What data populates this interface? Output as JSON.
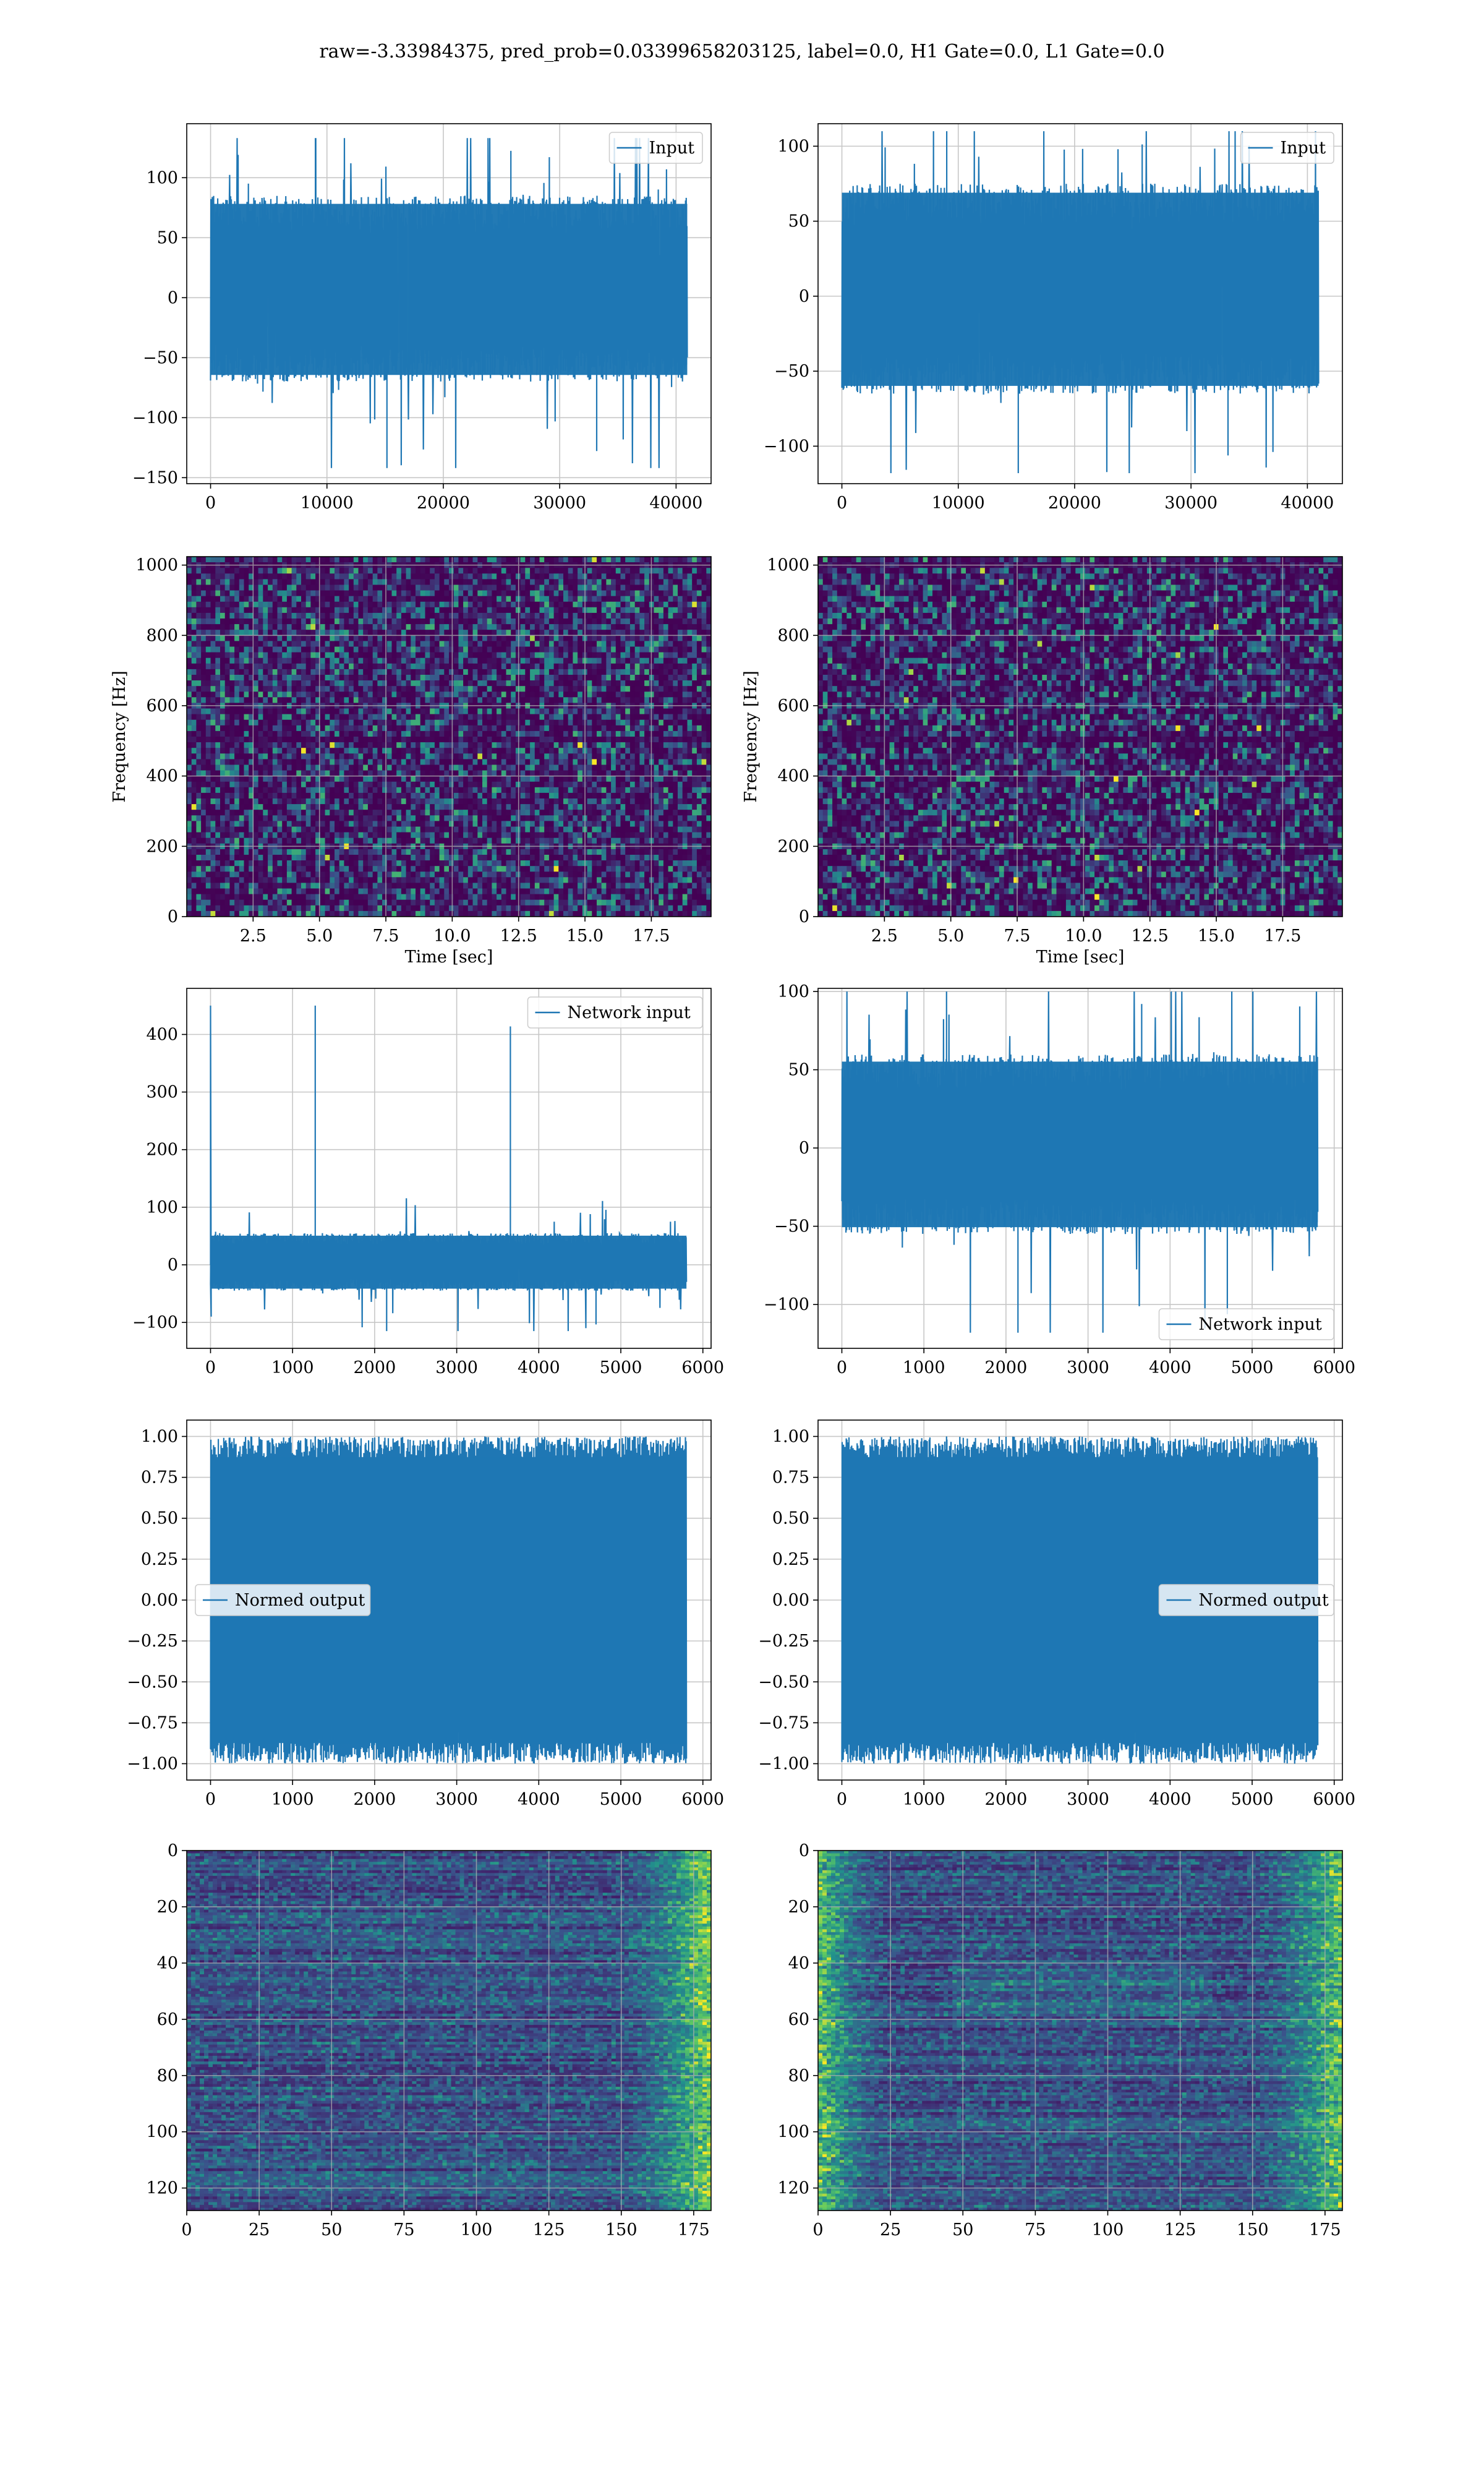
{
  "title": "raw=-3.33984375, pred_prob=0.03399658203125, label=0.0, H1 Gate=0.0, L1 Gate=0.0",
  "colors": {
    "line": "#1f77b4",
    "grid": "#b0b0b0",
    "viridis_low": "#440154",
    "viridis_mid": "#21918c",
    "viridis_high": "#fde725"
  },
  "chart_data": [
    {
      "id": "h1-input",
      "type": "line",
      "signal": "noise",
      "legend": {
        "label": "Input",
        "loc": "upper-right"
      },
      "xlim": [
        -2048,
        43008
      ],
      "ylim": [
        -155,
        145
      ],
      "xticks": [
        0,
        10000,
        20000,
        30000,
        40000
      ],
      "yticks": [
        -150,
        -100,
        -50,
        0,
        50,
        100
      ],
      "series": [
        {
          "name": "Input",
          "x_range": [
            0,
            40960
          ],
          "core_amplitude": [
            -70,
            85
          ],
          "peak_max": 133,
          "peak_min": -142
        }
      ]
    },
    {
      "id": "l1-input",
      "type": "line",
      "signal": "noise",
      "legend": {
        "label": "Input",
        "loc": "upper-right"
      },
      "xlim": [
        -2048,
        43008
      ],
      "ylim": [
        -125,
        115
      ],
      "xticks": [
        0,
        10000,
        20000,
        30000,
        40000
      ],
      "yticks": [
        -100,
        -50,
        0,
        50,
        100
      ],
      "series": [
        {
          "name": "Input",
          "x_range": [
            0,
            40960
          ],
          "core_amplitude": [
            -65,
            75
          ],
          "peak_max": 110,
          "peak_min": -118
        }
      ]
    },
    {
      "id": "h1-spectrogram",
      "type": "heatmap",
      "variant": "spectrogram",
      "xlabel": "Time [sec]",
      "ylabel": "Frequency [Hz]",
      "xlim": [
        0,
        19.75
      ],
      "ylim": [
        0,
        1024
      ],
      "xticks": [
        2.5,
        5.0,
        7.5,
        10.0,
        12.5,
        15.0,
        17.5
      ],
      "yticks": [
        0,
        200,
        400,
        600,
        800,
        1000
      ],
      "dark_bands_hz": [
        500,
        1000
      ]
    },
    {
      "id": "l1-spectrogram",
      "type": "heatmap",
      "variant": "spectrogram",
      "xlabel": "Time [sec]",
      "ylabel": "Frequency [Hz]",
      "xlim": [
        0,
        19.75
      ],
      "ylim": [
        0,
        1024
      ],
      "xticks": [
        2.5,
        5.0,
        7.5,
        10.0,
        12.5,
        15.0,
        17.5
      ],
      "yticks": [
        0,
        200,
        400,
        600,
        800,
        1000
      ],
      "dark_bands_hz": [
        500,
        1000
      ]
    },
    {
      "id": "h1-network-input",
      "type": "line",
      "signal": "spike",
      "legend": {
        "label": "Network input",
        "loc": "upper-right"
      },
      "xlim": [
        -290,
        6100
      ],
      "ylim": [
        -145,
        480
      ],
      "xticks": [
        0,
        1000,
        2000,
        3000,
        4000,
        5000,
        6000
      ],
      "yticks": [
        -100,
        0,
        100,
        200,
        300,
        400
      ],
      "series": [
        {
          "name": "Network input",
          "x_range": [
            0,
            5800
          ],
          "core_amplitude": [
            -45,
            55
          ],
          "peak_max": 450,
          "peak_min": -115
        }
      ]
    },
    {
      "id": "l1-network-input",
      "type": "line",
      "signal": "noise",
      "legend": {
        "label": "Network input",
        "loc": "lower-right"
      },
      "xlim": [
        -290,
        6100
      ],
      "ylim": [
        -128,
        102
      ],
      "xticks": [
        0,
        1000,
        2000,
        3000,
        4000,
        5000,
        6000
      ],
      "yticks": [
        -100,
        -50,
        0,
        50,
        100
      ],
      "series": [
        {
          "name": "Network input",
          "x_range": [
            0,
            5800
          ],
          "core_amplitude": [
            -55,
            60
          ],
          "peak_max": 100,
          "peak_min": -118
        }
      ]
    },
    {
      "id": "h1-normed-output",
      "type": "line",
      "signal": "saturated",
      "legend": {
        "label": "Normed output",
        "loc": "center-left"
      },
      "xlim": [
        -290,
        6100
      ],
      "ylim": [
        -1.1,
        1.1
      ],
      "xticks": [
        0,
        1000,
        2000,
        3000,
        4000,
        5000,
        6000
      ],
      "yticks": [
        -1.0,
        -0.75,
        -0.5,
        -0.25,
        0.0,
        0.25,
        0.5,
        0.75,
        1.0
      ],
      "series": [
        {
          "name": "Normed output",
          "x_range": [
            0,
            5800
          ],
          "core_amplitude": [
            -0.95,
            0.95
          ],
          "peak_max": 1.0,
          "peak_min": -1.0
        }
      ]
    },
    {
      "id": "l1-normed-output",
      "type": "line",
      "signal": "saturated",
      "legend": {
        "label": "Normed output",
        "loc": "center-right"
      },
      "xlim": [
        -290,
        6100
      ],
      "ylim": [
        -1.1,
        1.1
      ],
      "xticks": [
        0,
        1000,
        2000,
        3000,
        4000,
        5000,
        6000
      ],
      "yticks": [
        -1.0,
        -0.75,
        -0.5,
        -0.25,
        0.0,
        0.25,
        0.5,
        0.75,
        1.0
      ],
      "series": [
        {
          "name": "Normed output",
          "x_range": [
            0,
            5800
          ],
          "core_amplitude": [
            -0.95,
            0.95
          ],
          "peak_max": 1.0,
          "peak_min": -1.0
        }
      ]
    },
    {
      "id": "h1-feature-map",
      "type": "heatmap",
      "variant": "feature-map",
      "inverted_y": true,
      "xlim": [
        0,
        181
      ],
      "ylim": [
        0,
        128
      ],
      "xticks": [
        0,
        25,
        50,
        75,
        100,
        125,
        150,
        175
      ],
      "yticks": [
        0,
        20,
        40,
        60,
        80,
        100,
        120
      ],
      "bright_region": "right"
    },
    {
      "id": "l1-feature-map",
      "type": "heatmap",
      "variant": "feature-map",
      "inverted_y": true,
      "xlim": [
        0,
        181
      ],
      "ylim": [
        0,
        128
      ],
      "xticks": [
        0,
        25,
        50,
        75,
        100,
        125,
        150,
        175
      ],
      "yticks": [
        0,
        20,
        40,
        60,
        80,
        100,
        120
      ],
      "bright_region": "both-edges"
    }
  ]
}
